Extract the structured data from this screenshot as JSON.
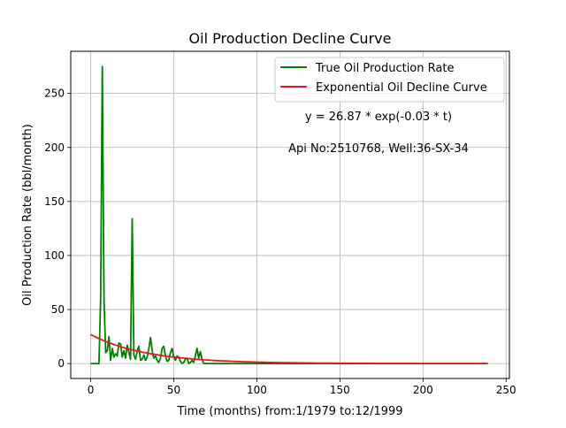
{
  "chart_data": {
    "type": "line",
    "title": "Oil Production Decline Curve",
    "xlabel": "Time (months) from:1/1979 to:12/1999",
    "ylabel": "Oil Production Rate (bbl/month)",
    "xlim": [
      -12,
      252
    ],
    "ylim": [
      -13.8,
      289
    ],
    "xticks": [
      0,
      50,
      100,
      150,
      200,
      250
    ],
    "yticks": [
      0,
      50,
      100,
      150,
      200,
      250
    ],
    "grid": true,
    "legend_position": "upper-right",
    "annotations": [
      "y = 26.87 * exp(-0.03 * t)",
      "Api No:2510768, Well:36-SX-34"
    ],
    "series": [
      {
        "name": "True Oil Production Rate",
        "color": "#008000",
        "x": [
          0,
          5,
          6,
          7,
          8,
          9,
          10,
          11,
          12,
          13,
          14,
          15,
          16,
          17,
          18,
          19,
          20,
          21,
          22,
          23,
          24,
          25,
          26,
          27,
          28,
          29,
          30,
          31,
          32,
          33,
          34,
          35,
          36,
          37,
          38,
          39,
          40,
          41,
          42,
          43,
          44,
          45,
          46,
          47,
          48,
          49,
          50,
          51,
          52,
          53,
          54,
          55,
          56,
          57,
          58,
          59,
          60,
          61,
          62,
          63,
          64,
          65,
          66,
          67,
          68,
          100,
          150,
          200,
          239
        ],
        "y": [
          0,
          0,
          60,
          275,
          60,
          10,
          12,
          25,
          3,
          14,
          6,
          9,
          7,
          19,
          18,
          6,
          12,
          5,
          17,
          10,
          4,
          134,
          8,
          4,
          12,
          16,
          3,
          4,
          8,
          3,
          6,
          14,
          24,
          12,
          5,
          7,
          3,
          1,
          5,
          14,
          16,
          7,
          2,
          3,
          10,
          14,
          6,
          3,
          7,
          6,
          2,
          0,
          1,
          4,
          5,
          0,
          1,
          3,
          1,
          7,
          14,
          5,
          11,
          4,
          0,
          0,
          0,
          0,
          0
        ]
      },
      {
        "name": "Exponential Oil Decline Curve",
        "color": "#e01b1b",
        "amplitude": 26.87,
        "rate": 0.03,
        "x_range": [
          0,
          239
        ]
      }
    ]
  }
}
